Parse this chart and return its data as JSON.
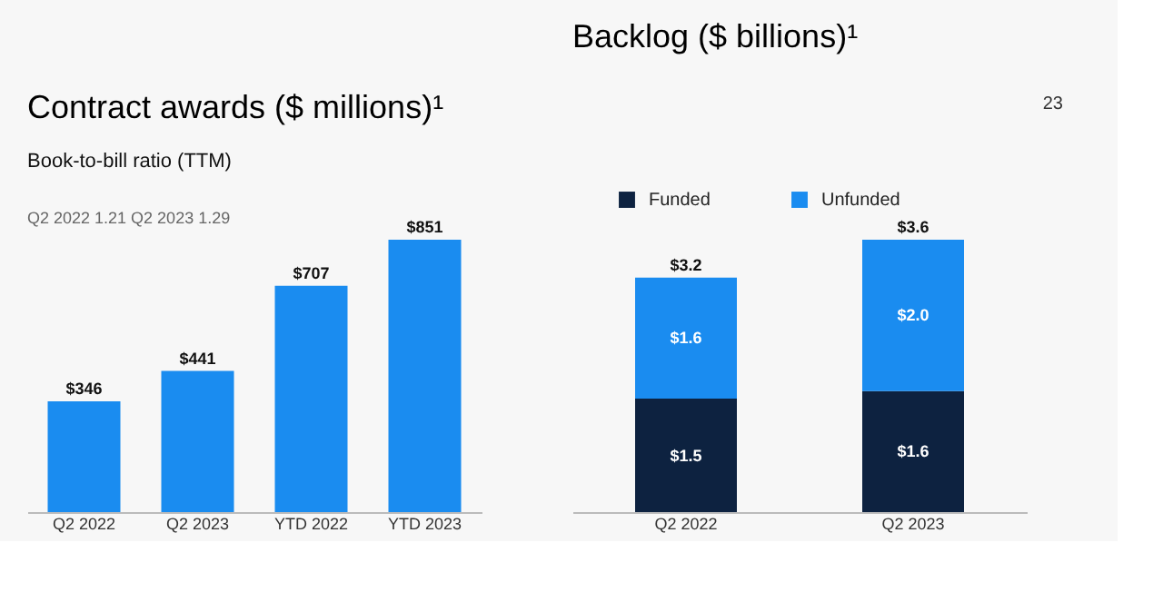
{
  "chart_data": [
    {
      "type": "bar",
      "title": "Contract awards ($ millions)¹",
      "subtitle": "Book-to-bill ratio (TTM)",
      "annotations": [
        "Q2 2022  1.21    Q2 2023  1.29"
      ],
      "categories": [
        "Q2 2022",
        "Q2 2023",
        "YTD 2022",
        "YTD 2023"
      ],
      "values": [
        346,
        441,
        707,
        851
      ],
      "value_labels": [
        "$346",
        "$441",
        "$707",
        "$851"
      ],
      "color": "#1a8cf0",
      "grid": false
    },
    {
      "type": "bar",
      "title": "Backlog ($ billions)¹",
      "annotations": [
        "23"
      ],
      "stacked": true,
      "legend": "top",
      "grid": false,
      "categories": [
        "Q2 2022",
        "Q2 2023"
      ],
      "series": [
        {
          "name": "Funded",
          "color": "#0d2240",
          "values": [
            1.5,
            1.6
          ],
          "value_labels": [
            "$1.5",
            "$1.6"
          ]
        },
        {
          "name": "Unfunded",
          "color": "#1a8cf0",
          "values": [
            1.6,
            2.0
          ],
          "value_labels": [
            "$1.6",
            "$2.0"
          ]
        }
      ],
      "totals": [
        "$3.2",
        "$3.6"
      ]
    }
  ]
}
